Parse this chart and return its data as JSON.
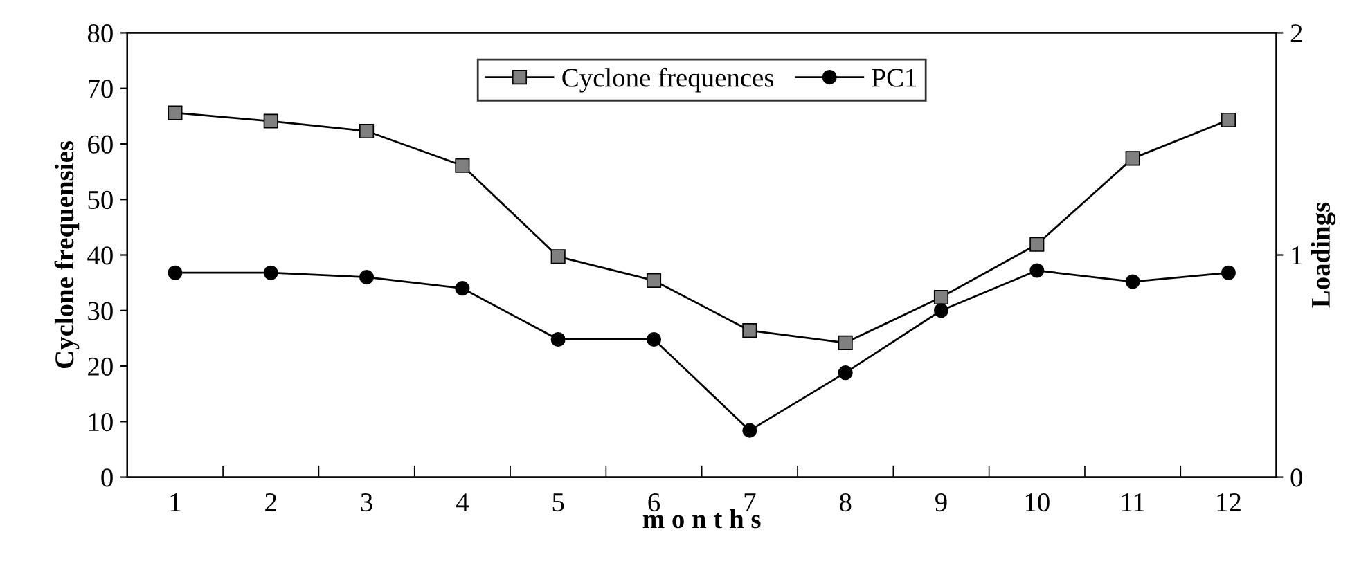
{
  "chart_data": {
    "type": "line",
    "xlabel": "m o n t h s",
    "ylabel": "Cyclone frequensies",
    "y2label": "Loadings",
    "categories": [
      "1",
      "2",
      "3",
      "4",
      "5",
      "6",
      "7",
      "8",
      "9",
      "10",
      "11",
      "12"
    ],
    "series": [
      {
        "name": "Cyclone frequences",
        "color": "#808080",
        "marker": "square",
        "values": [
          65.6,
          64.1,
          62.3,
          56.1,
          39.7,
          35.4,
          26.4,
          24.2,
          32.4,
          41.9,
          57.4,
          64.3
        ]
      },
      {
        "name": "PC1",
        "color": "#000000",
        "marker": "circle",
        "axis": "y2",
        "values": [
          0.92,
          0.92,
          0.9,
          0.85,
          0.62,
          0.62,
          0.21,
          0.47,
          0.75,
          0.93,
          0.88,
          0.92
        ]
      }
    ],
    "ylim": [
      0,
      80
    ],
    "yticks": [
      0,
      10,
      20,
      30,
      40,
      50,
      60,
      70,
      80
    ],
    "y2lim": [
      0,
      2
    ],
    "y2ticks": [
      0,
      1,
      2
    ],
    "grid": false,
    "legend": "top",
    "line_style": "solid"
  }
}
